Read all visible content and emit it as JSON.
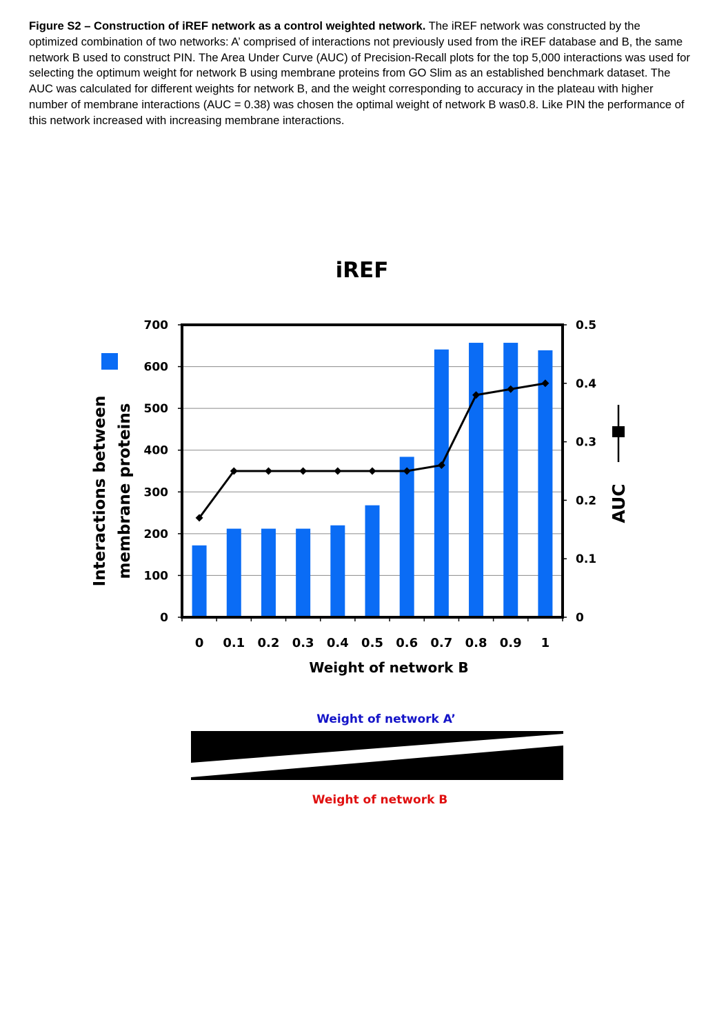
{
  "caption": {
    "bold": "Figure S2 – Construction of iREF network as a control weighted network.",
    "text": "The iREF network was constructed by the optimized  combination of two networks: A’ comprised of interactions not previously used from the iREF database and B, the same network  B used to construct PIN. The Area Under Curve (AUC) of  Precision-Recall plots for the top 5,000 interactions was used  for selecting the optimum weight for network B using membrane proteins from GO Slim as an established benchmark dataset. The AUC was calculated for different weights for network B, and the weight corresponding to accuracy in the plateau with higher number of membrane interactions (AUC = 0.38) was chosen the optimal weight of network B was0.8.  Like PIN the performance of this network increased with increasing membrane interactions."
  },
  "chart_data": {
    "type": "bar",
    "title": "iREF",
    "xlabel": "Weight of network B",
    "ylabel": "Interactions between membrane proteins",
    "ylabel_lines": [
      "Interactions between",
      "membrane proteins"
    ],
    "y2label": "AUC",
    "categories": [
      "0",
      "0.1",
      "0.2",
      "0.3",
      "0.4",
      "0.5",
      "0.6",
      "0.7",
      "0.8",
      "0.9",
      "1"
    ],
    "ylim": [
      0,
      700
    ],
    "yticks": [
      "0",
      "100",
      "200",
      "300",
      "400",
      "500",
      "600",
      "700"
    ],
    "y2lim": [
      0,
      0.5
    ],
    "y2ticks": [
      "0",
      "0.1",
      "0.2",
      "0.3",
      "0.4",
      "0.5"
    ],
    "grid": true,
    "series": [
      {
        "type": "bar",
        "axis": "left",
        "color": "#0a6cf5",
        "values": [
          172,
          212,
          212,
          212,
          220,
          268,
          384,
          641,
          657,
          657,
          639
        ]
      },
      {
        "type": "line",
        "axis": "right",
        "color": "#000000",
        "marker": "diamond",
        "values": [
          0.17,
          0.25,
          0.25,
          0.25,
          0.25,
          0.25,
          0.25,
          0.26,
          0.38,
          0.39,
          0.4
        ]
      }
    ]
  },
  "weights_diagram": {
    "label_a": "Weight of network A’",
    "label_a_color": "#1414c8",
    "label_b": "Weight of network B",
    "label_b_color": "#e01010"
  }
}
